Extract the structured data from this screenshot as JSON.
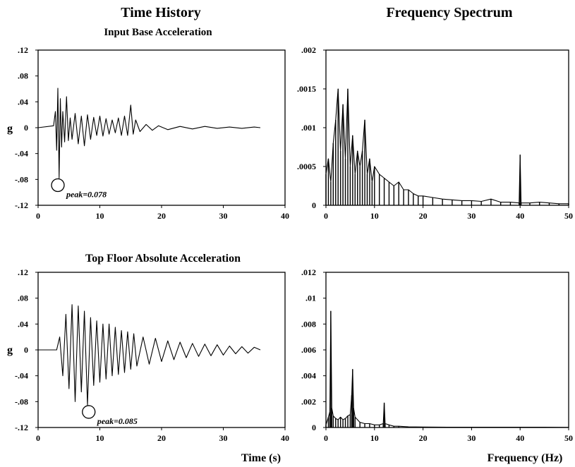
{
  "headings": {
    "left_title": "Time History",
    "right_title": "Frequency Spectrum",
    "top_left_subtitle": "Input Base Acceleration",
    "bottom_left_subtitle": "Top Floor Absolute Acceleration"
  },
  "chart_data": [
    {
      "id": "base-time",
      "type": "line",
      "title": "Input Base Acceleration",
      "xlabel": "",
      "ylabel": "g",
      "xlim": [
        0,
        40
      ],
      "ylim": [
        -0.12,
        0.12
      ],
      "xticks": [
        0,
        10,
        20,
        30,
        40
      ],
      "xtick_labels": [
        "0",
        "10",
        "20",
        "30",
        "40"
      ],
      "yticks": [
        0.12,
        0.08,
        0.04,
        0,
        -0.04,
        -0.08,
        -0.12
      ],
      "ytick_labels": [
        ".12",
        ".08",
        ".04",
        "0",
        "-.04",
        "-.08",
        "-.12"
      ],
      "annotation": {
        "text": "peak=0.078",
        "x": 3.2,
        "y": -0.078
      },
      "series": [
        {
          "x": [
            0,
            2.5,
            2.8,
            3.0,
            3.2,
            3.4,
            3.6,
            3.8,
            4.0,
            4.3,
            4.6,
            4.9,
            5.2,
            5.5,
            6.0,
            6.5,
            7.0,
            7.5,
            8.0,
            8.5,
            9.0,
            9.5,
            10.0,
            10.5,
            11.0,
            11.5,
            12.0,
            12.5,
            13.0,
            13.5,
            14.0,
            14.5,
            15.0,
            15.4,
            15.8,
            16.5,
            17.5,
            18.5,
            19.5,
            21.0,
            23.0,
            25.0,
            27.0,
            29.0,
            31.0,
            33.0,
            35.0,
            36.0
          ],
          "y": [
            0.0,
            0.003,
            0.025,
            -0.035,
            0.061,
            -0.078,
            0.045,
            -0.03,
            0.025,
            -0.022,
            0.048,
            -0.02,
            0.015,
            -0.018,
            0.022,
            -0.025,
            0.018,
            -0.028,
            0.02,
            -0.018,
            0.016,
            -0.012,
            0.018,
            -0.013,
            0.014,
            -0.01,
            0.012,
            -0.008,
            0.015,
            -0.012,
            0.018,
            -0.012,
            0.035,
            -0.01,
            0.012,
            -0.006,
            0.005,
            -0.004,
            0.003,
            -0.003,
            0.002,
            -0.002,
            0.002,
            -0.001,
            0.001,
            -0.001,
            0.001,
            0.0
          ]
        }
      ]
    },
    {
      "id": "base-spectrum",
      "type": "line",
      "title": "",
      "xlabel": "",
      "ylabel": "",
      "xlim": [
        0,
        50
      ],
      "ylim": [
        0,
        0.002
      ],
      "xticks": [
        0,
        10,
        20,
        30,
        40,
        50
      ],
      "xtick_labels": [
        "0",
        "10",
        "20",
        "30",
        "40",
        "50"
      ],
      "yticks": [
        0.002,
        0.0015,
        0.001,
        0.0005,
        0
      ],
      "ytick_labels": [
        ".002",
        ".0015",
        ".001",
        ".0005",
        "0"
      ],
      "series": [
        {
          "x": [
            0,
            0.5,
            1.0,
            1.5,
            2.0,
            2.5,
            3.0,
            3.5,
            4.0,
            4.5,
            5.0,
            5.5,
            6.0,
            6.5,
            7.0,
            7.5,
            8.0,
            8.5,
            9.0,
            9.5,
            10.0,
            11.0,
            12.0,
            13.0,
            14.0,
            15.0,
            16.0,
            17.0,
            18.0,
            19.0,
            20.0,
            22.0,
            24.0,
            26.0,
            28.0,
            30.0,
            32.0,
            34.0,
            36.0,
            38.0,
            39.8,
            40.0,
            40.2,
            42.0,
            44.0,
            46.0,
            48.0,
            50.0
          ],
          "y": [
            0.0004,
            0.0006,
            0.0003,
            0.0008,
            0.0011,
            0.0015,
            0.0007,
            0.0013,
            0.0006,
            0.0015,
            0.0005,
            0.0009,
            0.0004,
            0.0007,
            0.0005,
            0.0007,
            0.0011,
            0.0004,
            0.0006,
            0.0003,
            0.0005,
            0.0004,
            0.00035,
            0.0003,
            0.00025,
            0.0003,
            0.0002,
            0.0002,
            0.00015,
            0.00012,
            0.00012,
            0.0001,
            8e-05,
            7e-05,
            6e-05,
            6e-05,
            5e-05,
            8e-05,
            4e-05,
            4e-05,
            3e-05,
            0.00065,
            3e-05,
            3e-05,
            4e-05,
            3e-05,
            2e-05,
            2e-05
          ]
        }
      ]
    },
    {
      "id": "top-time",
      "type": "line",
      "title": "Top Floor Absolute Acceleration",
      "xlabel": "Time (s)",
      "ylabel": "g",
      "xlim": [
        0,
        40
      ],
      "ylim": [
        -0.12,
        0.12
      ],
      "xticks": [
        0,
        10,
        20,
        30,
        40
      ],
      "xtick_labels": [
        "0",
        "10",
        "20",
        "30",
        "40"
      ],
      "yticks": [
        0.12,
        0.08,
        0.04,
        0,
        -0.04,
        -0.08,
        -0.12
      ],
      "ytick_labels": [
        ".12",
        ".08",
        ".04",
        "0",
        "-.04",
        "-.08",
        "-.12"
      ],
      "annotation": {
        "text": "peak=0.085",
        "x": 8.2,
        "y": -0.085
      },
      "series": [
        {
          "x": [
            0,
            3.0,
            3.5,
            4.0,
            4.5,
            5.0,
            5.5,
            6.0,
            6.5,
            7.0,
            7.5,
            8.0,
            8.5,
            9.0,
            9.5,
            10.0,
            10.5,
            11.0,
            11.5,
            12.0,
            12.5,
            13.0,
            13.5,
            14.0,
            14.5,
            15.0,
            15.5,
            16.0,
            17.0,
            18.0,
            19.0,
            20.0,
            21.0,
            22.0,
            23.0,
            24.0,
            25.0,
            26.0,
            27.0,
            28.0,
            29.0,
            30.0,
            31.0,
            32.0,
            33.0,
            34.0,
            35.0,
            36.0
          ],
          "y": [
            0.0,
            0.0,
            0.02,
            -0.04,
            0.055,
            -0.06,
            0.07,
            -0.08,
            0.068,
            -0.065,
            0.06,
            -0.085,
            0.05,
            -0.055,
            0.045,
            -0.05,
            0.04,
            -0.045,
            0.04,
            -0.04,
            0.035,
            -0.038,
            0.03,
            -0.035,
            0.028,
            -0.03,
            0.025,
            -0.025,
            0.02,
            -0.022,
            0.018,
            -0.018,
            0.014,
            -0.015,
            0.012,
            -0.012,
            0.01,
            -0.01,
            0.009,
            -0.009,
            0.008,
            -0.008,
            0.006,
            -0.006,
            0.005,
            -0.005,
            0.004,
            0.0
          ]
        }
      ]
    },
    {
      "id": "top-spectrum",
      "type": "line",
      "title": "",
      "xlabel": "Frequency (Hz)",
      "ylabel": "",
      "xlim": [
        0,
        50
      ],
      "ylim": [
        0,
        0.012
      ],
      "xticks": [
        0,
        10,
        20,
        30,
        40,
        50
      ],
      "xtick_labels": [
        "0",
        "10",
        "20",
        "30",
        "40",
        "50"
      ],
      "yticks": [
        0.012,
        0.01,
        0.008,
        0.006,
        0.004,
        0.002,
        0
      ],
      "ytick_labels": [
        ".012",
        ".01",
        ".008",
        ".006",
        ".004",
        ".002",
        "0"
      ],
      "series": [
        {
          "x": [
            0,
            0.5,
            0.8,
            1.0,
            1.2,
            1.5,
            2.0,
            2.5,
            3.0,
            3.5,
            4.0,
            4.5,
            5.0,
            5.3,
            5.5,
            5.7,
            6.0,
            7.0,
            8.0,
            9.0,
            10.0,
            11.0,
            11.8,
            12.0,
            12.2,
            13.0,
            14.0,
            15.0,
            17.0,
            20.0,
            25.0,
            30.0,
            35.0,
            40.0,
            45.0,
            50.0
          ],
          "y": [
            0.0002,
            0.0008,
            0.0012,
            0.009,
            0.0015,
            0.0009,
            0.0007,
            0.0006,
            0.0008,
            0.0006,
            0.0007,
            0.0009,
            0.001,
            0.0025,
            0.0045,
            0.0015,
            0.0008,
            0.0004,
            0.0003,
            0.0003,
            0.0002,
            0.0002,
            0.0003,
            0.0019,
            0.0003,
            0.0002,
            0.0001,
            0.0001,
            5e-05,
            4e-05,
            3e-05,
            3e-05,
            2e-05,
            2e-05,
            2e-05,
            1e-05
          ]
        }
      ]
    }
  ]
}
